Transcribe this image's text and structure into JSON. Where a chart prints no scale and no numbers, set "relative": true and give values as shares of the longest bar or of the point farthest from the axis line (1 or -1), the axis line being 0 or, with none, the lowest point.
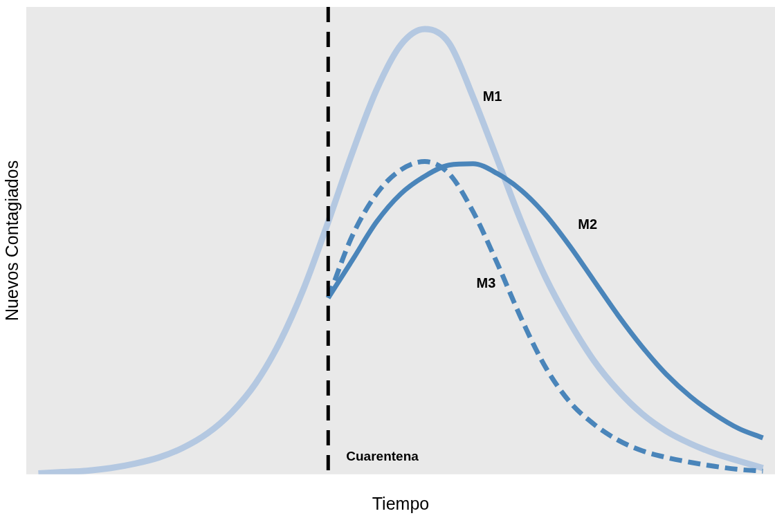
{
  "chart_data": {
    "type": "line",
    "relative": true,
    "xlabel": "Tiempo",
    "ylabel": "Nuevos Contagiados",
    "legend": false,
    "grid": false,
    "marker": "none",
    "categories": [
      null,
      null,
      null,
      null,
      null,
      null,
      null,
      null,
      null,
      null,
      null,
      null,
      null,
      null,
      null,
      null,
      null,
      null,
      null,
      null,
      null,
      null,
      null,
      null,
      null,
      null,
      null,
      null,
      null,
      null,
      null
    ],
    "annotations": [
      "Cuarentena"
    ],
    "series": [
      {
        "name": "M1",
        "color": "#b4c8e1",
        "line_style": "solid",
        "values": [
          0,
          0.003,
          0.006,
          0.012,
          0.022,
          0.036,
          0.058,
          0.09,
          0.137,
          0.203,
          0.296,
          0.418,
          0.566,
          0.722,
          0.863,
          0.964,
          1,
          0.969,
          0.847,
          0.707,
          0.566,
          0.441,
          0.34,
          0.254,
          0.187,
          0.134,
          0.095,
          0.067,
          0.045,
          0.028,
          0.012
        ]
      },
      {
        "name": "M2",
        "color": "#4a85ba",
        "line_style": "solid",
        "values": [
          null,
          null,
          null,
          null,
          null,
          null,
          null,
          null,
          null,
          null,
          null,
          null,
          0.395,
          0.48,
          0.566,
          0.629,
          0.669,
          0.694,
          0.697,
          0.675,
          0.637,
          0.582,
          0.512,
          0.434,
          0.356,
          0.285,
          0.223,
          0.173,
          0.133,
          0.101,
          0.08
        ]
      },
      {
        "name": "M3",
        "color": "#4a85ba",
        "line_style": "dashed",
        "values": [
          null,
          null,
          null,
          null,
          null,
          null,
          null,
          null,
          null,
          null,
          null,
          null,
          0.395,
          0.535,
          0.629,
          0.683,
          0.702,
          0.675,
          0.589,
          0.473,
          0.348,
          0.239,
          0.161,
          0.111,
          0.075,
          0.051,
          0.036,
          0.025,
          0.016,
          0.009,
          0.005
        ]
      }
    ]
  }
}
